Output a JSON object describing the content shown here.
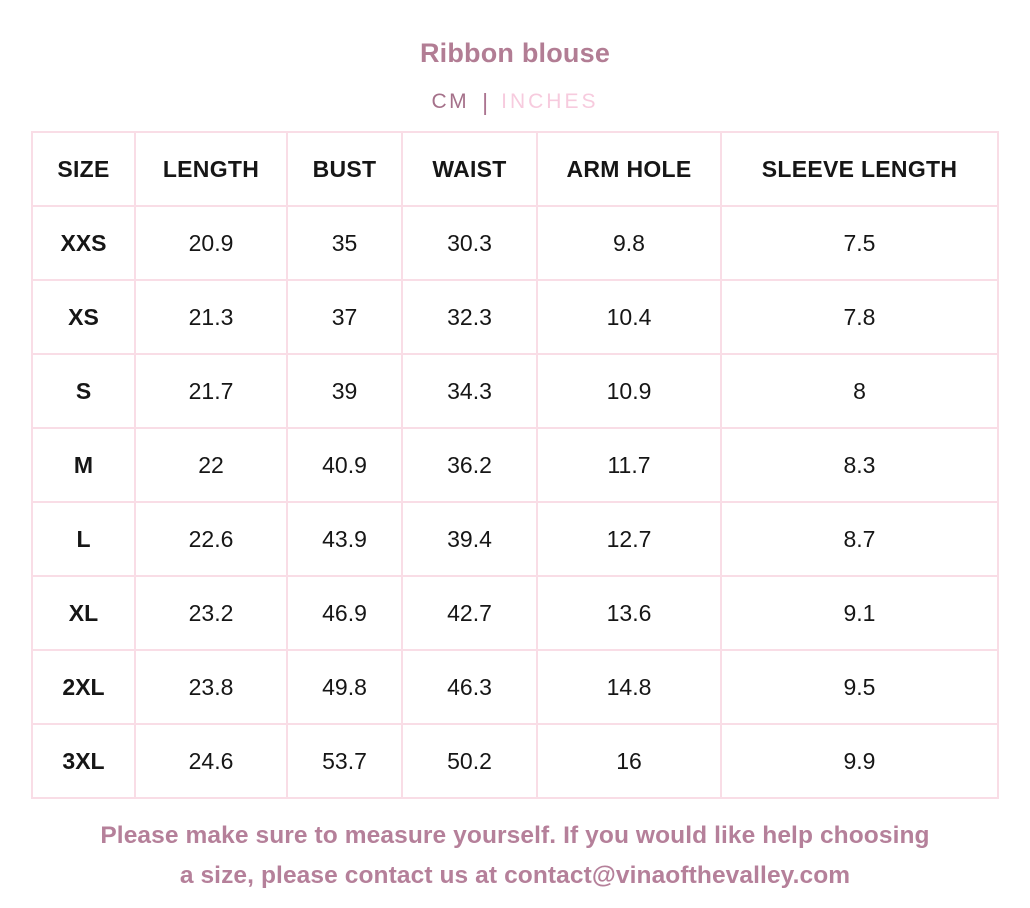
{
  "page": {
    "title": "Ribbon blouse"
  },
  "units": {
    "cm_label": "CM",
    "divider": "|",
    "inches_label": "INCHES",
    "selected": "CM"
  },
  "colors": {
    "accent_mauve": "#b27d94",
    "unit_selected": "#a5718a",
    "unit_unselected": "#f7cbde",
    "table_border": "#f9dde6",
    "footer_text": "#b5809a",
    "cell_text": "#161616"
  },
  "size_chart": {
    "columns": [
      "SIZE",
      "LENGTH",
      "BUST",
      "WAIST",
      "ARM HOLE",
      "SLEEVE LENGTH"
    ],
    "rows": [
      [
        "XXS",
        "20.9",
        "35",
        "30.3",
        "9.8",
        "7.5"
      ],
      [
        "XS",
        "21.3",
        "37",
        "32.3",
        "10.4",
        "7.8"
      ],
      [
        "S",
        "21.7",
        "39",
        "34.3",
        "10.9",
        "8"
      ],
      [
        "M",
        "22",
        "40.9",
        "36.2",
        "11.7",
        "8.3"
      ],
      [
        "L",
        "22.6",
        "43.9",
        "39.4",
        "12.7",
        "8.7"
      ],
      [
        "XL",
        "23.2",
        "46.9",
        "42.7",
        "13.6",
        "9.1"
      ],
      [
        "2XL",
        "23.8",
        "49.8",
        "46.3",
        "14.8",
        "9.5"
      ],
      [
        "3XL",
        "24.6",
        "53.7",
        "50.2",
        "16",
        "9.9"
      ]
    ]
  },
  "footer": {
    "note_line1": "Please make sure to measure yourself. If you would like help choosing",
    "note_line2": "a size, please contact us at contact@vinaofthevalley.com",
    "contact_email": "contact@vinaofthevalley.com"
  }
}
